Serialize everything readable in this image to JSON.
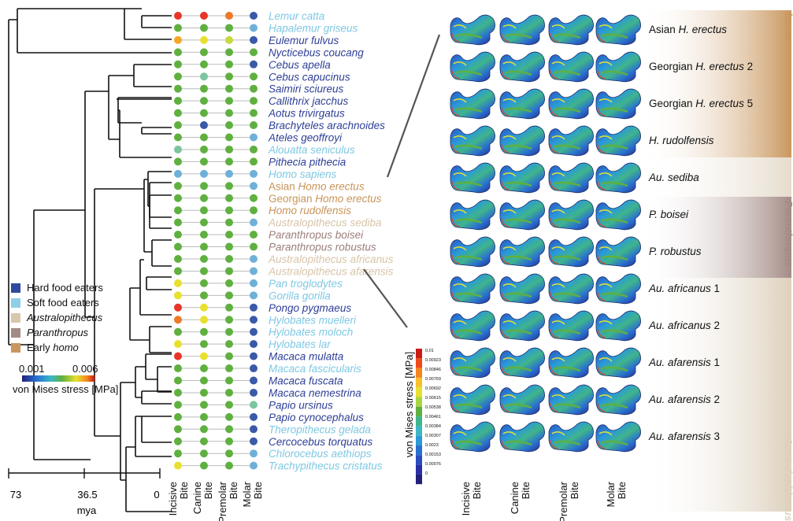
{
  "species": [
    {
      "name": "Lemur catta",
      "color": "#7ec8e3",
      "italic": true,
      "dots": [
        "#e8352a",
        "#e8352a",
        "#ec7a28",
        "#3a5aa8"
      ]
    },
    {
      "name": "Hapalemur griseus",
      "color": "#7ec8e3",
      "italic": true,
      "dots": [
        "#5fb040",
        "#5fb040",
        "#5fb040",
        "#6fb0d8"
      ]
    },
    {
      "name": "Eulemur fulvus",
      "color": "#2e3f96",
      "italic": true,
      "dots": [
        "#f5a623",
        "#e8e030",
        "#c8d840",
        "#3a5aa8"
      ]
    },
    {
      "name": "Nycticebus coucang",
      "color": "#2e3f96",
      "italic": true,
      "dots": [
        "#5fb040",
        "#5fb040",
        "#5fb040",
        "#5fb040"
      ]
    },
    {
      "name": "Cebus apella",
      "color": "#2e3f96",
      "italic": true,
      "dots": [
        "#5fb040",
        "#5fb040",
        "#5fb040",
        "#3a5aa8"
      ]
    },
    {
      "name": "Cebus capucinus",
      "color": "#2e3f96",
      "italic": true,
      "dots": [
        "#5fb040",
        "#7cc5a0",
        "#5fb040",
        "#5fb040"
      ]
    },
    {
      "name": "Saimiri sciureus",
      "color": "#2e3f96",
      "italic": true,
      "dots": [
        "#5fb040",
        "#5fb040",
        "#5fb040",
        "#5fb040"
      ]
    },
    {
      "name": "Callithrix jacchus",
      "color": "#2e3f96",
      "italic": true,
      "dots": [
        "#5fb040",
        "#5fb040",
        "#5fb040",
        "#5fb040"
      ]
    },
    {
      "name": "Aotus trivirgatus",
      "color": "#2e3f96",
      "italic": true,
      "dots": [
        "#5fb040",
        "#5fb040",
        "#5fb040",
        "#5fb040"
      ]
    },
    {
      "name": "Brachyteles arachnoides",
      "color": "#2e3f96",
      "italic": true,
      "dots": [
        "#5fb040",
        "#3a5aa8",
        "#5fb040",
        "#5fb040"
      ]
    },
    {
      "name": "Ateles geoffroyi",
      "color": "#2e3f96",
      "italic": true,
      "dots": [
        "#5fb040",
        "#5fb040",
        "#5fb040",
        "#6fb0d8"
      ]
    },
    {
      "name": "Alouatta seniculus",
      "color": "#7ec8e3",
      "italic": true,
      "dots": [
        "#7cc5a0",
        "#5fb040",
        "#5fb040",
        "#5fb040"
      ]
    },
    {
      "name": "Pithecia pithecia",
      "color": "#2e3f96",
      "italic": true,
      "dots": [
        "#5fb040",
        "#5fb040",
        "#5fb040",
        "#5fb040"
      ]
    },
    {
      "name": "Homo sapiens",
      "color": "#7ec8e3",
      "italic": true,
      "dots": [
        "#6fb0d8",
        "#6fb0d8",
        "#6fb0d8",
        "#6fb0d8"
      ]
    },
    {
      "name": "Asian Homo erectus",
      "prefix": "Asian ",
      "core": "Homo erectus",
      "color": "#c8955a",
      "italic": false,
      "dots": [
        "#5fb040",
        "#5fb040",
        "#5fb040",
        "#6fb0d8"
      ]
    },
    {
      "name": "Georgian Homo erectus",
      "prefix": "Georgian ",
      "core": "Homo erectus",
      "color": "#c8955a",
      "italic": false,
      "dots": [
        "#5fb040",
        "#5fb040",
        "#5fb040",
        "#5fb040"
      ]
    },
    {
      "name": "Homo rudolfensis",
      "color": "#c8955a",
      "italic": true,
      "dots": [
        "#5fb040",
        "#5fb040",
        "#5fb040",
        "#5fb040"
      ]
    },
    {
      "name": "Australopithecus sediba",
      "color": "#d8c4a8",
      "italic": true,
      "dots": [
        "#5fb040",
        "#5fb040",
        "#5fb040",
        "#6fb0d8"
      ]
    },
    {
      "name": "Paranthropus boisei",
      "color": "#9c7f7a",
      "italic": true,
      "dots": [
        "#5fb040",
        "#5fb040",
        "#5fb040",
        "#5fb040"
      ]
    },
    {
      "name": "Paranthropus robustus",
      "color": "#9c7f7a",
      "italic": true,
      "dots": [
        "#5fb040",
        "#5fb040",
        "#5fb040",
        "#5fb040"
      ]
    },
    {
      "name": "Australopithecus africanus",
      "color": "#d8c4a8",
      "italic": true,
      "dots": [
        "#5fb040",
        "#5fb040",
        "#5fb040",
        "#6fb0d8"
      ]
    },
    {
      "name": "Australopithecus afarensis",
      "color": "#d8c4a8",
      "italic": true,
      "dots": [
        "#5fb040",
        "#5fb040",
        "#5fb040",
        "#6fb0d8"
      ]
    },
    {
      "name": "Pan troglodytes",
      "color": "#7ec8e3",
      "italic": true,
      "dots": [
        "#e8e030",
        "#5fb040",
        "#5fb040",
        "#6fb0d8"
      ]
    },
    {
      "name": "Gorilla gorilla",
      "color": "#7ec8e3",
      "italic": true,
      "dots": [
        "#e8e030",
        "#5fb040",
        "#5fb040",
        "#6fb0d8"
      ]
    },
    {
      "name": "Pongo pygmaeus",
      "color": "#2e3f96",
      "italic": true,
      "dots": [
        "#e8352a",
        "#e8e030",
        "#5fb040",
        "#3a5aa8"
      ]
    },
    {
      "name": "Hylobates muelleri",
      "color": "#7ec8e3",
      "italic": true,
      "dots": [
        "#ec7a28",
        "#e8e030",
        "#5fb040",
        "#3a5aa8"
      ]
    },
    {
      "name": "Hylobates moloch",
      "color": "#7ec8e3",
      "italic": true,
      "dots": [
        "#5fb040",
        "#5fb040",
        "#5fb040",
        "#3a5aa8"
      ]
    },
    {
      "name": "Hylobates lar",
      "color": "#7ec8e3",
      "italic": true,
      "dots": [
        "#e8e030",
        "#5fb040",
        "#5fb040",
        "#3a5aa8"
      ]
    },
    {
      "name": "Macaca mulatta",
      "color": "#2e3f96",
      "italic": true,
      "dots": [
        "#e8352a",
        "#e8e030",
        "#5fb040",
        "#3a5aa8"
      ]
    },
    {
      "name": "Macaca fascicularis",
      "color": "#7ec8e3",
      "italic": true,
      "dots": [
        "#5fb040",
        "#5fb040",
        "#5fb040",
        "#3a5aa8"
      ]
    },
    {
      "name": "Macaca fuscata",
      "color": "#2e3f96",
      "italic": true,
      "dots": [
        "#5fb040",
        "#5fb040",
        "#5fb040",
        "#3a5aa8"
      ]
    },
    {
      "name": "Macaca nemestrina",
      "color": "#2e3f96",
      "italic": true,
      "dots": [
        "#5fb040",
        "#5fb040",
        "#5fb040",
        "#3a5aa8"
      ]
    },
    {
      "name": "Papio ursinus",
      "color": "#2e3f96",
      "italic": true,
      "dots": [
        "#5fb040",
        "#5fb040",
        "#5fb040",
        "#7cc5a0"
      ]
    },
    {
      "name": "Papio cynocephalus",
      "color": "#2e3f96",
      "italic": true,
      "dots": [
        "#5fb040",
        "#5fb040",
        "#5fb040",
        "#3a5aa8"
      ]
    },
    {
      "name": "Theropithecus gelada",
      "color": "#7ec8e3",
      "italic": true,
      "dots": [
        "#5fb040",
        "#5fb040",
        "#5fb040",
        "#3a5aa8"
      ]
    },
    {
      "name": "Cercocebus torquatus",
      "color": "#2e3f96",
      "italic": true,
      "dots": [
        "#5fb040",
        "#5fb040",
        "#5fb040",
        "#3a5aa8"
      ]
    },
    {
      "name": "Chlorocebus aethiops",
      "color": "#7ec8e3",
      "italic": true,
      "dots": [
        "#5fb040",
        "#5fb040",
        "#5fb040",
        "#6fb0d8"
      ]
    },
    {
      "name": "Trachypithecus cristatus",
      "color": "#7ec8e3",
      "italic": true,
      "dots": [
        "#e8e030",
        "#5fb040",
        "#5fb040",
        "#6fb0d8"
      ]
    }
  ],
  "bite_columns": [
    {
      "line1": "Incisive",
      "line2": "Bite"
    },
    {
      "line1": "Canine",
      "line2": "Bite"
    },
    {
      "line1": "Premolar",
      "line2": "Bite"
    },
    {
      "line1": "Molar",
      "line2": "Bite"
    }
  ],
  "time_axis": {
    "ticks": [
      "73",
      "36.5",
      "0"
    ],
    "unit": "mya"
  },
  "legend": {
    "items": [
      {
        "label": "Hard food eaters",
        "italic": false,
        "color": "#2e4a9e"
      },
      {
        "label": "Soft food eaters",
        "italic": false,
        "color": "#8ecfe8"
      },
      {
        "label": "Australopithecus",
        "italic": true,
        "color": "#d9c7ad"
      },
      {
        "label": "Paranthropus",
        "italic": true,
        "color": "#a48c86"
      },
      {
        "label": "Early homo",
        "prefix": "Early ",
        "core": "homo",
        "italic": false,
        "color": "#c9975e"
      }
    ],
    "scale_min": "0.001",
    "scale_max": "0.006",
    "scale_label": "von Mises stress [MPa]"
  },
  "colorbar": {
    "label": "von Mises stress [MPa]",
    "ticks": [
      "0.01",
      "0.00923",
      "0.00846",
      "0.00769",
      "0.00692",
      "0.00615",
      "0.00538",
      "0.00461",
      "0.00384",
      "0.00307",
      "0.0023",
      "0.00153",
      "0.00076",
      "0"
    ],
    "colors": [
      "#cc1a14",
      "#f04a1a",
      "#f5851f",
      "#f8c12a",
      "#e8e030",
      "#a8d640",
      "#5fb040",
      "#3fb58a",
      "#3ab8c4",
      "#2a9ad8",
      "#2a70d0",
      "#2a4cc0",
      "#2a2ea6",
      "#23207a"
    ]
  },
  "fossils": [
    {
      "label": "Asian H. erectus",
      "prefix": "Asian ",
      "core": "H. erectus"
    },
    {
      "label": "Georgian H. erectus 2",
      "prefix": "Georgian ",
      "core": "H. erectus",
      "suffix": " 2"
    },
    {
      "label": "Georgian H. erectus 5",
      "prefix": "Georgian ",
      "core": "H. erectus",
      "suffix": " 5"
    },
    {
      "label": "H. rudolfensis",
      "core": "H. rudolfensis"
    },
    {
      "label": "Au. sediba",
      "core": "Au. sediba"
    },
    {
      "label": "P. boisei",
      "core": "P. boisei"
    },
    {
      "label": "P. robustus",
      "core": "P. robustus"
    },
    {
      "label": "Au. africanus 1",
      "core": "Au. africanus",
      "suffix": " 1"
    },
    {
      "label": "Au. africanus 2",
      "core": "Au. africanus",
      "suffix": " 2"
    },
    {
      "label": "Au. afarensis 1",
      "core": "Au. afarensis",
      "suffix": " 1"
    },
    {
      "label": "Au. afarensis 2",
      "core": "Au. afarensis",
      "suffix": " 2"
    },
    {
      "label": "Au. afarensis 3",
      "core": "Au. afarensis",
      "suffix": " 3"
    }
  ],
  "group_bands": [
    {
      "label": "homo",
      "color": "#c9975e"
    },
    {
      "label": "",
      "color": "#e6dccc"
    },
    {
      "label": "Paranthropus",
      "color": "#a48c86"
    },
    {
      "label": "Australopithecus",
      "color": "#ddd0bc"
    }
  ]
}
